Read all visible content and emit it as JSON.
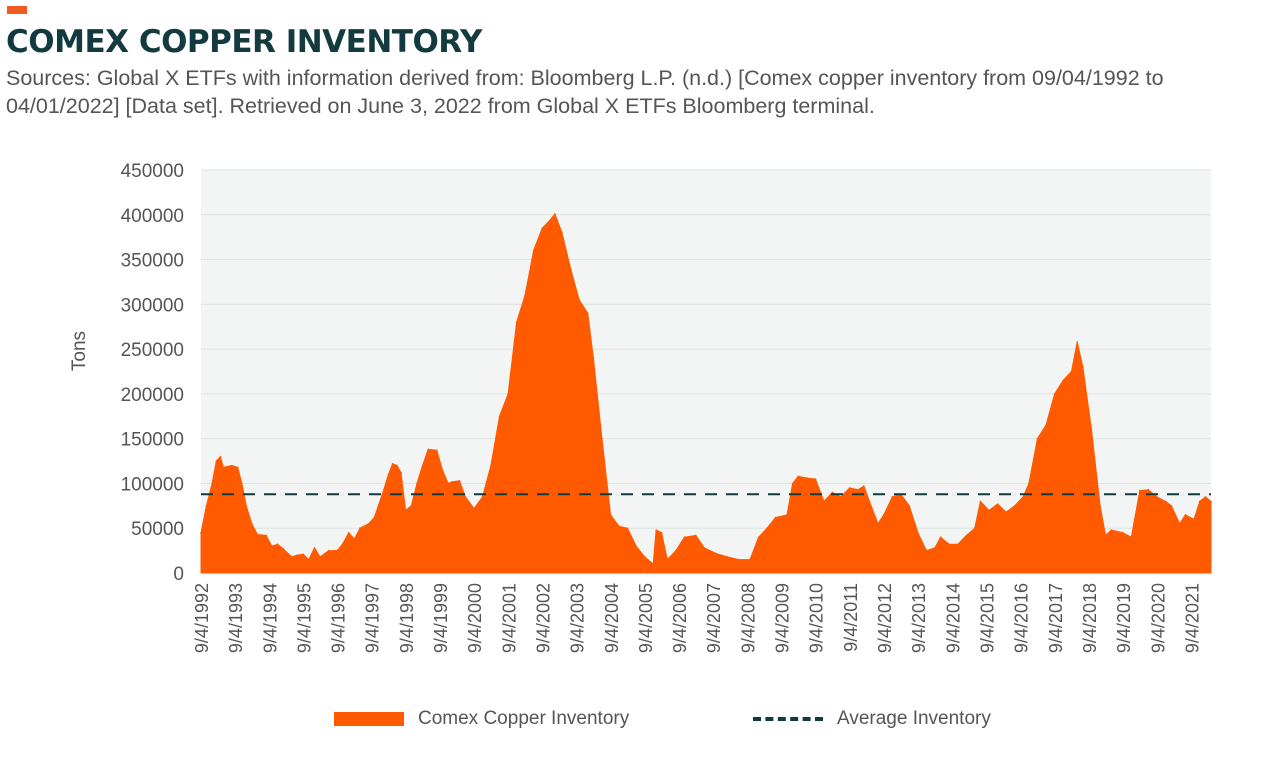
{
  "header": {
    "title": "COMEX COPPER INVENTORY",
    "subtitle": "Sources: Global X ETFs with information derived from: Bloomberg L.P. (n.d.) [Comex copper inventory from 09/04/1992 to 04/01/2022] [Data set]. Retrieved on June 3, 2022 from Global X ETFs Bloomberg terminal."
  },
  "colors": {
    "accent": "#f05a1e",
    "area": "#ff5a00",
    "dark": "#123a3f",
    "plot_bg": "#f2f5f4"
  },
  "chart_data": {
    "type": "area",
    "ylabel": "Tons",
    "xlabel": "",
    "ylim": [
      0,
      450000
    ],
    "yticks": [
      0,
      50000,
      100000,
      150000,
      200000,
      250000,
      300000,
      350000,
      400000,
      450000
    ],
    "x_range": [
      "1992-09-04",
      "2022-04-01"
    ],
    "xtick_labels": [
      "9/4/1992",
      "9/4/1993",
      "9/4/1994",
      "9/4/1995",
      "9/4/1996",
      "9/4/1997",
      "9/4/1998",
      "9/4/1999",
      "9/4/2000",
      "9/4/2001",
      "9/4/2002",
      "9/4/2003",
      "9/4/2004",
      "9/4/2005",
      "9/4/2006",
      "9/4/2007",
      "9/4/2008",
      "9/4/2009",
      "9/4/2010",
      "9/4/2011",
      "9/4/2012",
      "9/4/2013",
      "9/4/2014",
      "9/4/2015",
      "9/4/2016",
      "9/4/2017",
      "9/4/2018",
      "9/4/2019",
      "9/4/2020",
      "9/4/2021"
    ],
    "grid": true,
    "legend_position": "bottom",
    "series": [
      {
        "name": "Comex Copper Inventory",
        "kind": "area",
        "points": [
          [
            "1992-09-04",
            45000
          ],
          [
            "1992-11-01",
            75000
          ],
          [
            "1993-01-01",
            100000
          ],
          [
            "1993-02-15",
            125000
          ],
          [
            "1993-04-01",
            130000
          ],
          [
            "1993-05-01",
            118000
          ],
          [
            "1993-08-01",
            120000
          ],
          [
            "1993-10-01",
            118000
          ],
          [
            "1993-11-15",
            100000
          ],
          [
            "1994-01-01",
            75000
          ],
          [
            "1994-03-01",
            55000
          ],
          [
            "1994-05-01",
            43000
          ],
          [
            "1994-08-01",
            42000
          ],
          [
            "1994-10-01",
            30000
          ],
          [
            "1994-12-01",
            32000
          ],
          [
            "1995-02-01",
            27000
          ],
          [
            "1995-05-01",
            18000
          ],
          [
            "1995-07-01",
            20000
          ],
          [
            "1995-09-01",
            21000
          ],
          [
            "1995-11-01",
            15000
          ],
          [
            "1996-01-01",
            28000
          ],
          [
            "1996-03-01",
            18000
          ],
          [
            "1996-06-01",
            25000
          ],
          [
            "1996-09-01",
            25000
          ],
          [
            "1996-11-01",
            33000
          ],
          [
            "1997-01-01",
            45000
          ],
          [
            "1997-03-01",
            38000
          ],
          [
            "1997-05-01",
            50000
          ],
          [
            "1997-08-01",
            55000
          ],
          [
            "1997-10-01",
            62000
          ],
          [
            "1998-01-01",
            90000
          ],
          [
            "1998-03-01",
            110000
          ],
          [
            "1998-04-15",
            122000
          ],
          [
            "1998-06-01",
            120000
          ],
          [
            "1998-07-15",
            112000
          ],
          [
            "1998-09-01",
            70000
          ],
          [
            "1998-11-01",
            75000
          ],
          [
            "1999-01-01",
            100000
          ],
          [
            "1999-03-01",
            120000
          ],
          [
            "1999-05-01",
            138000
          ],
          [
            "1999-08-01",
            137000
          ],
          [
            "1999-10-01",
            115000
          ],
          [
            "1999-12-01",
            100000
          ],
          [
            "2000-01-15",
            102000
          ],
          [
            "2000-04-01",
            103000
          ],
          [
            "2000-06-01",
            85000
          ],
          [
            "2000-09-01",
            72000
          ],
          [
            "2000-12-01",
            85000
          ],
          [
            "2001-03-01",
            120000
          ],
          [
            "2001-06-01",
            175000
          ],
          [
            "2001-09-01",
            200000
          ],
          [
            "2001-12-01",
            280000
          ],
          [
            "2002-03-01",
            310000
          ],
          [
            "2002-06-01",
            360000
          ],
          [
            "2002-09-01",
            385000
          ],
          [
            "2002-12-01",
            395000
          ],
          [
            "2003-01-15",
            401000
          ],
          [
            "2003-04-01",
            380000
          ],
          [
            "2003-07-01",
            340000
          ],
          [
            "2003-10-01",
            305000
          ],
          [
            "2004-01-01",
            290000
          ],
          [
            "2004-03-01",
            240000
          ],
          [
            "2004-06-01",
            150000
          ],
          [
            "2004-09-01",
            65000
          ],
          [
            "2004-12-01",
            52000
          ],
          [
            "2005-03-01",
            50000
          ],
          [
            "2005-06-01",
            30000
          ],
          [
            "2005-09-01",
            18000
          ],
          [
            "2005-12-01",
            10000
          ],
          [
            "2006-01-01",
            48000
          ],
          [
            "2006-03-01",
            45000
          ],
          [
            "2006-05-01",
            15000
          ],
          [
            "2006-08-01",
            25000
          ],
          [
            "2006-11-01",
            40000
          ],
          [
            "2007-03-01",
            42000
          ],
          [
            "2007-06-01",
            28000
          ],
          [
            "2007-10-01",
            22000
          ],
          [
            "2008-02-01",
            18000
          ],
          [
            "2008-06-01",
            15000
          ],
          [
            "2008-10-01",
            15000
          ],
          [
            "2009-01-01",
            40000
          ],
          [
            "2009-04-01",
            50000
          ],
          [
            "2009-07-01",
            62000
          ],
          [
            "2009-11-01",
            65000
          ],
          [
            "2010-01-01",
            100000
          ],
          [
            "2010-03-01",
            108000
          ],
          [
            "2010-06-01",
            106000
          ],
          [
            "2010-09-01",
            105000
          ],
          [
            "2010-12-01",
            80000
          ],
          [
            "2011-03-01",
            90000
          ],
          [
            "2011-06-01",
            85000
          ],
          [
            "2011-09-01",
            95000
          ],
          [
            "2011-12-01",
            93000
          ],
          [
            "2012-02-01",
            97000
          ],
          [
            "2012-04-01",
            80000
          ],
          [
            "2012-07-01",
            55000
          ],
          [
            "2012-09-01",
            65000
          ],
          [
            "2012-12-01",
            85000
          ],
          [
            "2013-03-01",
            88000
          ],
          [
            "2013-06-01",
            75000
          ],
          [
            "2013-09-01",
            45000
          ],
          [
            "2013-12-01",
            25000
          ],
          [
            "2014-03-01",
            28000
          ],
          [
            "2014-05-01",
            40000
          ],
          [
            "2014-08-01",
            32000
          ],
          [
            "2014-11-01",
            32000
          ],
          [
            "2015-02-01",
            42000
          ],
          [
            "2015-05-01",
            50000
          ],
          [
            "2015-07-01",
            80000
          ],
          [
            "2015-10-01",
            70000
          ],
          [
            "2016-01-01",
            77000
          ],
          [
            "2016-04-01",
            68000
          ],
          [
            "2016-07-01",
            75000
          ],
          [
            "2016-10-01",
            85000
          ],
          [
            "2016-12-01",
            100000
          ],
          [
            "2017-03-01",
            150000
          ],
          [
            "2017-06-01",
            165000
          ],
          [
            "2017-09-01",
            200000
          ],
          [
            "2017-12-01",
            215000
          ],
          [
            "2018-03-01",
            225000
          ],
          [
            "2018-05-01",
            258000
          ],
          [
            "2018-07-01",
            230000
          ],
          [
            "2018-10-01",
            160000
          ],
          [
            "2019-01-01",
            75000
          ],
          [
            "2019-03-01",
            42000
          ],
          [
            "2019-05-01",
            48000
          ],
          [
            "2019-09-01",
            45000
          ],
          [
            "2019-12-01",
            40000
          ],
          [
            "2020-03-01",
            92000
          ],
          [
            "2020-06-01",
            93000
          ],
          [
            "2020-09-01",
            85000
          ],
          [
            "2020-12-01",
            80000
          ],
          [
            "2021-02-01",
            75000
          ],
          [
            "2021-05-01",
            55000
          ],
          [
            "2021-07-01",
            65000
          ],
          [
            "2021-10-01",
            60000
          ],
          [
            "2021-12-01",
            80000
          ],
          [
            "2022-02-01",
            85000
          ],
          [
            "2022-04-01",
            80000
          ]
        ]
      },
      {
        "name": "Average Inventory",
        "kind": "dashed-line",
        "value": 88000
      }
    ]
  }
}
